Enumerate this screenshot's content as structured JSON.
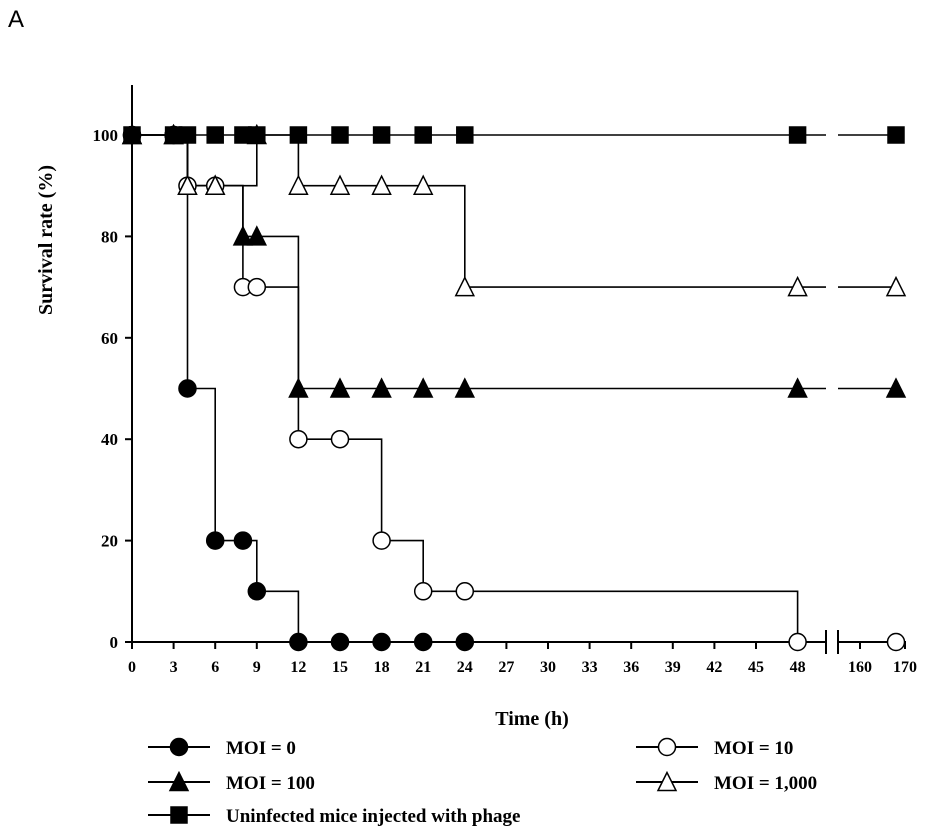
{
  "panel_label": "A",
  "chart_data": {
    "type": "line",
    "step": true,
    "xlabel": "Time (h)",
    "ylabel": "Survival rate (%)",
    "ylim": [
      0,
      100
    ],
    "y_ticks": [
      0,
      20,
      40,
      60,
      80,
      100
    ],
    "x_ticks": [
      "0",
      "3",
      "6",
      "9",
      "12",
      "15",
      "18",
      "21",
      "24",
      "27",
      "30",
      "33",
      "36",
      "39",
      "42",
      "45",
      "48",
      "160",
      "170"
    ],
    "x_axis_break_between": [
      48,
      160
    ],
    "grid": false,
    "legend_position": "bottom",
    "series": [
      {
        "name": "MOI = 0",
        "marker": "filled-circle",
        "points": [
          [
            0,
            100
          ],
          [
            3,
            100
          ],
          [
            4,
            50
          ],
          [
            6,
            20
          ],
          [
            8,
            20
          ],
          [
            9,
            10
          ],
          [
            12,
            0
          ],
          [
            15,
            0
          ],
          [
            18,
            0
          ],
          [
            21,
            0
          ],
          [
            24,
            0
          ]
        ]
      },
      {
        "name": "MOI = 10",
        "marker": "open-circle",
        "points": [
          [
            0,
            100
          ],
          [
            3,
            100
          ],
          [
            4,
            90
          ],
          [
            6,
            90
          ],
          [
            8,
            70
          ],
          [
            9,
            70
          ],
          [
            12,
            40
          ],
          [
            15,
            40
          ],
          [
            18,
            20
          ],
          [
            21,
            10
          ],
          [
            24,
            10
          ],
          [
            48,
            0
          ],
          [
            168,
            0
          ]
        ]
      },
      {
        "name": "MOI = 100",
        "marker": "filled-triangle",
        "points": [
          [
            0,
            100
          ],
          [
            3,
            100
          ],
          [
            4,
            90
          ],
          [
            6,
            90
          ],
          [
            8,
            80
          ],
          [
            9,
            80
          ],
          [
            12,
            50
          ],
          [
            15,
            50
          ],
          [
            18,
            50
          ],
          [
            21,
            50
          ],
          [
            24,
            50
          ],
          [
            48,
            50
          ],
          [
            168,
            50
          ]
        ]
      },
      {
        "name": "MOI = 1,000",
        "marker": "open-triangle",
        "points": [
          [
            0,
            100
          ],
          [
            3,
            100
          ],
          [
            4,
            90
          ],
          [
            6,
            90
          ],
          [
            9,
            100
          ],
          [
            12,
            90
          ],
          [
            15,
            90
          ],
          [
            18,
            90
          ],
          [
            21,
            90
          ],
          [
            24,
            70
          ],
          [
            48,
            70
          ],
          [
            168,
            70
          ]
        ]
      },
      {
        "name": "Uninfected mice injected with phage",
        "marker": "filled-square",
        "points": [
          [
            0,
            100
          ],
          [
            3,
            100
          ],
          [
            4,
            100
          ],
          [
            6,
            100
          ],
          [
            8,
            100
          ],
          [
            9,
            100
          ],
          [
            12,
            100
          ],
          [
            15,
            100
          ],
          [
            18,
            100
          ],
          [
            21,
            100
          ],
          [
            24,
            100
          ],
          [
            48,
            100
          ],
          [
            168,
            100
          ]
        ]
      }
    ]
  }
}
